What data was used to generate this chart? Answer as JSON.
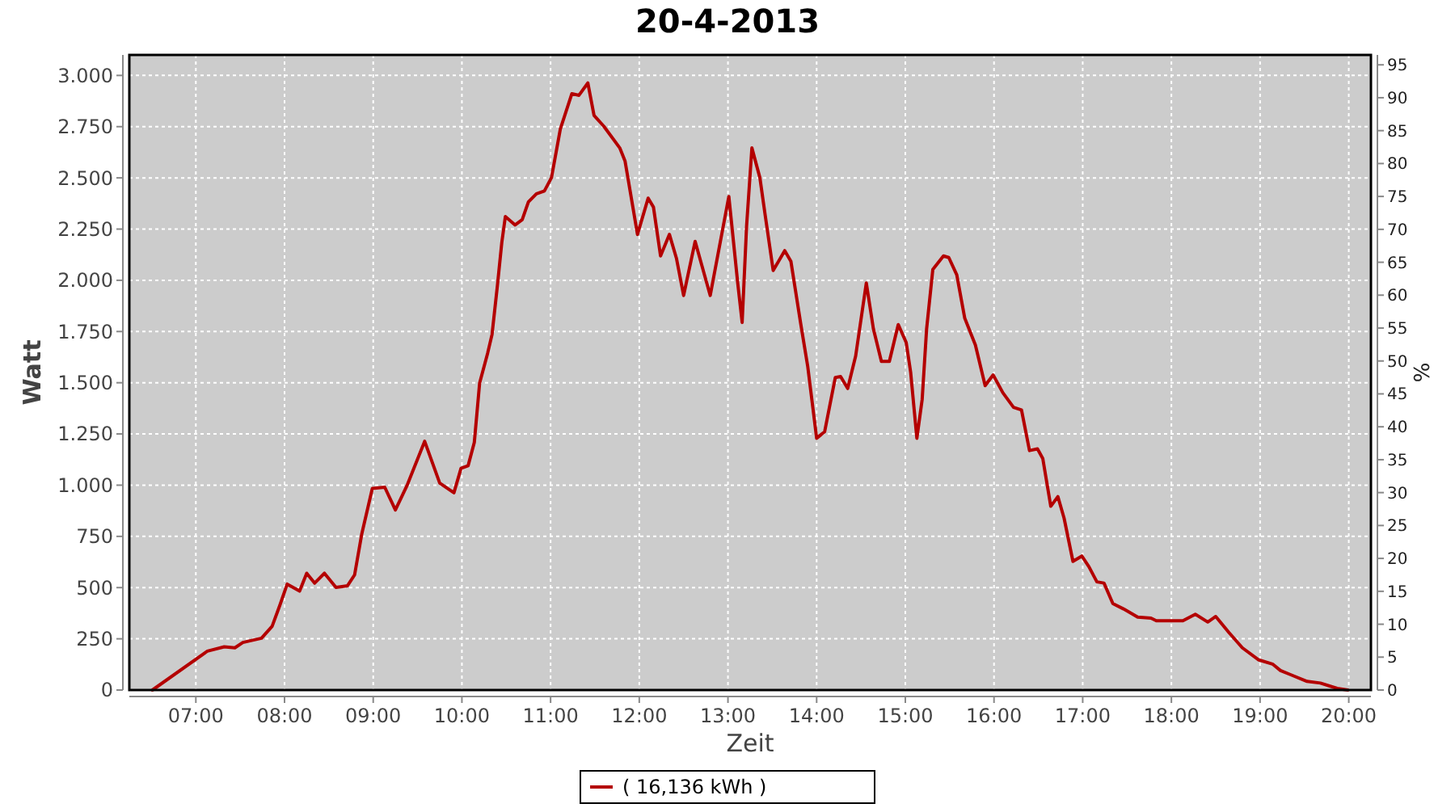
{
  "chart_data": {
    "type": "line",
    "title": "20-4-2013",
    "xlabel": "Zeit",
    "ylabel": "Watt",
    "y2label": "%",
    "xlim": [
      6.25,
      20.25
    ],
    "xticks": [
      {
        "value": 7,
        "label": "07:00"
      },
      {
        "value": 8,
        "label": "08:00"
      },
      {
        "value": 9,
        "label": "09:00"
      },
      {
        "value": 10,
        "label": "10:00"
      },
      {
        "value": 11,
        "label": "11:00"
      },
      {
        "value": 12,
        "label": "12:00"
      },
      {
        "value": 13,
        "label": "13:00"
      },
      {
        "value": 14,
        "label": "14:00"
      },
      {
        "value": 15,
        "label": "15:00"
      },
      {
        "value": 16,
        "label": "16:00"
      },
      {
        "value": 17,
        "label": "17:00"
      },
      {
        "value": 18,
        "label": "18:00"
      },
      {
        "value": 19,
        "label": "19:00"
      },
      {
        "value": 20,
        "label": "20:00"
      }
    ],
    "ylim": [
      0,
      3100
    ],
    "yticks": [
      0,
      250,
      500,
      750,
      {
        "value": 1000,
        "label": "1.000"
      },
      {
        "value": 1250,
        "label": "1.250"
      },
      {
        "value": 1500,
        "label": "1.500"
      },
      {
        "value": 1750,
        "label": "1.750"
      },
      {
        "value": 2000,
        "label": "2.000"
      },
      {
        "value": 2250,
        "label": "2.250"
      },
      {
        "value": 2500,
        "label": "2.500"
      },
      {
        "value": 2750,
        "label": "2.750"
      },
      {
        "value": 3000,
        "label": "3.000"
      }
    ],
    "y2lim": [
      0,
      96.5
    ],
    "y2ticks": [
      0,
      5,
      10,
      15,
      20,
      25,
      30,
      35,
      40,
      45,
      50,
      55,
      60,
      65,
      70,
      75,
      80,
      85,
      90,
      95
    ],
    "grid": true,
    "legend": "bottom",
    "line_style": "solid",
    "marker": "none",
    "series": [
      {
        "name": "( 16,136 kWh )",
        "color": "#b40000",
        "x": [
          6.51,
          7.13,
          7.32,
          7.44,
          7.53,
          7.74,
          7.86,
          7.95,
          8.03,
          8.17,
          8.25,
          8.34,
          8.45,
          8.58,
          8.71,
          8.79,
          8.87,
          8.99,
          9.13,
          9.25,
          9.38,
          9.58,
          9.75,
          9.91,
          9.99,
          10.07,
          10.14,
          10.2,
          10.29,
          10.34,
          10.4,
          10.45,
          10.49,
          10.6,
          10.68,
          10.75,
          10.84,
          10.93,
          11.01,
          11.11,
          11.24,
          11.32,
          11.42,
          11.49,
          11.6,
          11.78,
          11.84,
          11.98,
          12.1,
          12.16,
          12.24,
          12.34,
          12.42,
          12.5,
          12.63,
          12.8,
          13.01,
          13.11,
          13.16,
          13.21,
          13.27,
          13.36,
          13.42,
          13.51,
          13.57,
          13.64,
          13.71,
          13.82,
          13.9,
          14.0,
          14.09,
          14.21,
          14.27,
          14.35,
          14.44,
          14.56,
          14.64,
          14.73,
          14.82,
          14.92,
          15.01,
          15.06,
          15.13,
          15.19,
          15.24,
          15.31,
          15.43,
          15.49,
          15.58,
          15.67,
          15.79,
          15.9,
          15.99,
          16.1,
          16.22,
          16.31,
          16.4,
          16.49,
          16.55,
          16.64,
          16.72,
          16.79,
          16.89,
          16.99,
          17.07,
          17.16,
          17.24,
          17.34,
          17.46,
          17.62,
          17.77,
          17.83,
          18.13,
          18.27,
          18.41,
          18.5,
          18.65,
          18.8,
          18.98,
          19.14,
          19.23,
          19.35,
          19.53,
          19.68,
          19.87,
          19.99
        ],
        "values": [
          0,
          190,
          211,
          206,
          232,
          253,
          311,
          417,
          517,
          483,
          570,
          522,
          570,
          501,
          509,
          562,
          760,
          984,
          990,
          879,
          997,
          1214,
          1010,
          963,
          1082,
          1095,
          1209,
          1499,
          1644,
          1736,
          1973,
          2185,
          2311,
          2270,
          2296,
          2383,
          2422,
          2436,
          2501,
          2739,
          2911,
          2903,
          2963,
          2805,
          2752,
          2646,
          2581,
          2224,
          2401,
          2357,
          2119,
          2224,
          2106,
          1926,
          2190,
          1926,
          2409,
          1987,
          1794,
          2264,
          2646,
          2501,
          2317,
          2048,
          2092,
          2145,
          2092,
          1789,
          1578,
          1229,
          1261,
          1525,
          1530,
          1472,
          1631,
          1987,
          1763,
          1604,
          1604,
          1784,
          1696,
          1551,
          1229,
          1419,
          1763,
          2053,
          2119,
          2111,
          2027,
          1815,
          1684,
          1486,
          1538,
          1451,
          1380,
          1367,
          1169,
          1177,
          1130,
          897,
          944,
          839,
          628,
          654,
          602,
          528,
          522,
          422,
          396,
          356,
          351,
          338,
          338,
          370,
          332,
          359,
          280,
          206,
          148,
          127,
          95,
          74,
          42,
          34,
          8,
          0
        ]
      }
    ]
  }
}
